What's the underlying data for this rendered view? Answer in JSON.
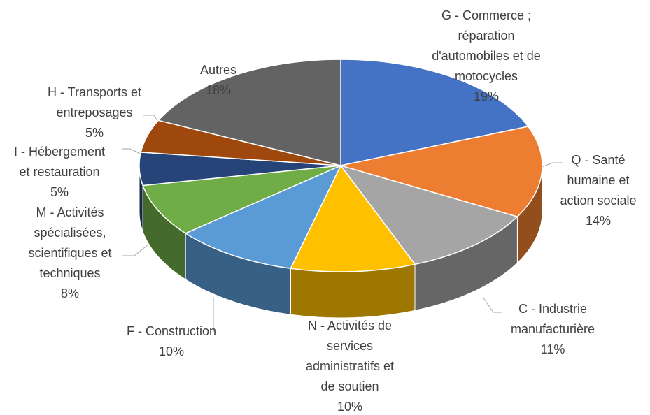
{
  "chart_data": {
    "type": "pie3d",
    "categories": [
      "G - Commerce ; réparation d'automobiles et de motocycles",
      "Q - Santé humaine et action sociale",
      "C - Industrie manufacturière",
      "N - Activités de services administratifs et de soutien",
      "F - Construction",
      "M - Activités spécialisées, scientifiques et techniques",
      "I - Hébergement et restauration",
      "H - Transports et entreposages",
      "Autres"
    ],
    "values": [
      19,
      14,
      11,
      10,
      10,
      8,
      5,
      5,
      18
    ],
    "value_labels": [
      "19%",
      "14%",
      "11%",
      "10%",
      "10%",
      "8%",
      "5%",
      "5%",
      "18%"
    ],
    "colors": [
      "#4472c4",
      "#ed7d31",
      "#a5a5a5",
      "#ffc000",
      "#5b9bd5",
      "#70ad47",
      "#264478",
      "#9e480e",
      "#636363"
    ]
  }
}
